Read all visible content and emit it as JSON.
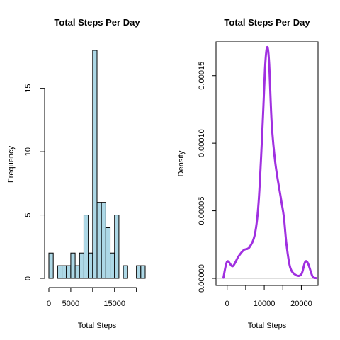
{
  "chart_data": [
    {
      "type": "bar",
      "title": "Total Steps Per Day",
      "xlabel": "Total Steps",
      "ylabel": "Frequency",
      "bin_width": 1000,
      "bins_start": 0,
      "values": [
        2,
        0,
        1,
        1,
        1,
        2,
        1,
        2,
        5,
        2,
        18,
        6,
        6,
        4,
        2,
        5,
        0,
        1,
        0,
        0,
        1,
        1
      ],
      "xlim": [
        0,
        22000
      ],
      "ylim": [
        0,
        18
      ],
      "x_ticks": [
        0,
        5000,
        15000
      ],
      "y_ticks": [
        0,
        5,
        10,
        15
      ],
      "bar_color": "#add8e6"
    },
    {
      "type": "line",
      "title": "Total Steps Per Day",
      "xlabel": "Total Steps",
      "ylabel": "Density",
      "x": [
        -1000,
        0,
        1500,
        3000,
        4500,
        6000,
        7500,
        8500,
        9500,
        10200,
        10750,
        11300,
        12000,
        13000,
        14500,
        15300,
        16000,
        17000,
        18500,
        20000,
        21000,
        21800,
        23000,
        24000
      ],
      "y": [
        5e-07,
        1.25e-05,
        9e-06,
        1.6e-05,
        2.1e-05,
        2.3e-05,
        3.3e-05,
        5.7e-05,
        0.00011,
        0.000155,
        0.000171,
        0.00016,
        0.000115,
        8.5e-05,
        5.9e-05,
        4.5e-05,
        2.5e-05,
        8e-06,
        2.5e-06,
        3e-06,
        1.2e-05,
        1.1e-05,
        1.5e-06,
        2e-07
      ],
      "xlim": [
        -3000,
        24500
      ],
      "ylim": [
        0,
        0.000175
      ],
      "x_ticks": [
        0,
        10000,
        20000
      ],
      "y_ticks": [
        "0.00000",
        "0.00005",
        "0.00010",
        "0.00015"
      ],
      "line_color": "#a030e0",
      "baseline_color": "#bebebe"
    }
  ]
}
